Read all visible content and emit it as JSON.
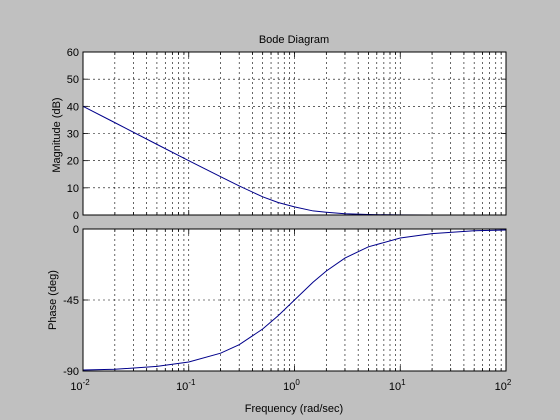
{
  "chart_data": {
    "type": "line",
    "title": "Bode Diagram",
    "xlabel": "Frequency  (rad/sec)",
    "x_scale": "log",
    "xlim": [
      0.01,
      100
    ],
    "x_tick_labels": [
      {
        "base": "10",
        "exp": "-2"
      },
      {
        "base": "10",
        "exp": "-1"
      },
      {
        "base": "10",
        "exp": "0"
      },
      {
        "base": "10",
        "exp": "1"
      },
      {
        "base": "10",
        "exp": "2"
      }
    ],
    "grid": true,
    "line_color": "#00008b",
    "background_color": "#c0c0c0",
    "axes_color": "#ffffff",
    "panels": [
      {
        "name": "magnitude",
        "ylabel": "Magnitude (dB)",
        "ylim": [
          0,
          60
        ],
        "yticks": [
          0,
          10,
          20,
          30,
          40,
          50,
          60
        ],
        "series": [
          {
            "x": [
              0.01,
              0.02,
              0.05,
              0.1,
              0.2,
              0.3,
              0.5,
              0.7,
              1,
              1.5,
              2,
              3,
              5,
              10,
              20,
              50,
              100
            ],
            "y": [
              40,
              34,
              26,
              20,
              14.1,
              10.7,
              6.7,
              4.6,
              3.0,
              1.5,
              1.0,
              0.45,
              0.17,
              0.04,
              0.01,
              0,
              0
            ]
          }
        ]
      },
      {
        "name": "phase",
        "ylabel": "Phase (deg)",
        "ylim": [
          -90,
          0
        ],
        "yticks": [
          -90,
          -45,
          0
        ],
        "series": [
          {
            "x": [
              0.01,
              0.02,
              0.05,
              0.1,
              0.2,
              0.3,
              0.5,
              0.7,
              1,
              1.5,
              2,
              3,
              5,
              10,
              20,
              50,
              100
            ],
            "y": [
              -89.4,
              -88.9,
              -87.1,
              -84.3,
              -78.7,
              -73.3,
              -63.4,
              -55.0,
              -45.0,
              -33.7,
              -26.6,
              -18.4,
              -11.3,
              -5.7,
              -2.9,
              -1.1,
              -0.6
            ]
          }
        ]
      }
    ]
  }
}
